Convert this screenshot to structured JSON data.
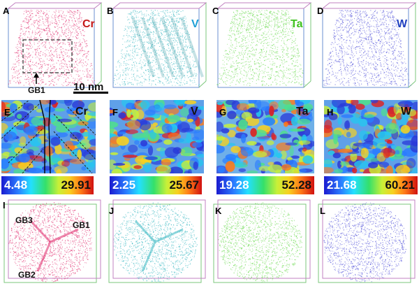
{
  "row1": {
    "panels": [
      {
        "letter": "A",
        "element": "Cr",
        "color": "#e0266a",
        "text_color": "#c41818"
      },
      {
        "letter": "B",
        "element": "V",
        "color": "#39b8c2",
        "text_color": "#1e9fd6"
      },
      {
        "letter": "C",
        "element": "Ta",
        "color": "#62d845",
        "text_color": "#3fc21e"
      },
      {
        "letter": "D",
        "element": "W",
        "color": "#4a4ad8",
        "text_color": "#1f3fc0"
      }
    ],
    "gb1_label": "GB1",
    "scale_label": "10 nm"
  },
  "row2": {
    "panels": [
      {
        "letter": "E",
        "element": "Cr",
        "min": "4.48",
        "max": "29.91"
      },
      {
        "letter": "F",
        "element": "V",
        "min": "2.25",
        "max": "25.67"
      },
      {
        "letter": "G",
        "element": "Ta",
        "min": "19.28",
        "max": "52.28"
      },
      {
        "letter": "H",
        "element": "W",
        "min": "21.68",
        "max": "60.21"
      }
    ]
  },
  "row3": {
    "panels": [
      {
        "letter": "I",
        "color": "#e0266a"
      },
      {
        "letter": "J",
        "color": "#39b8c2"
      },
      {
        "letter": "K",
        "color": "#62d845"
      },
      {
        "letter": "L",
        "color": "#4a4ad8"
      }
    ],
    "gb_labels": [
      "GB3",
      "GB1",
      "GB2"
    ]
  }
}
